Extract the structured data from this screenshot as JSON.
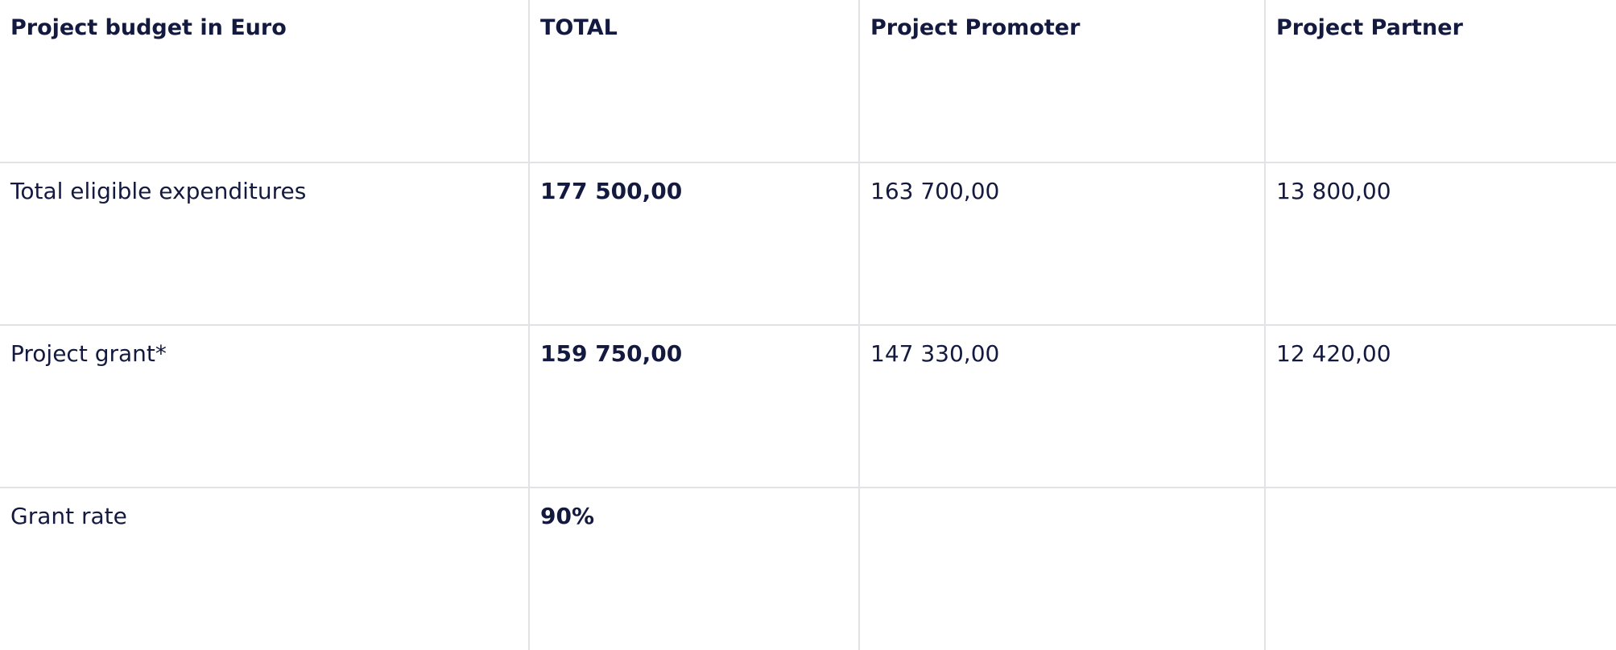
{
  "table": {
    "headers": [
      "Project budget in Euro",
      "TOTAL",
      "Project Promoter",
      "Project Partner"
    ],
    "rows": [
      {
        "label": "Total eligible expenditures",
        "total": "177 500,00",
        "promoter": "163 700,00",
        "partner": "13 800,00"
      },
      {
        "label": "Project grant*",
        "total": "159 750,00",
        "promoter": "147 330,00",
        "partner": "12 420,00"
      },
      {
        "label": "Grant rate",
        "total": "90%",
        "promoter": "",
        "partner": ""
      }
    ]
  },
  "colors": {
    "text": "#141a3f",
    "grid": "#e2e2e6",
    "background": "#ffffff"
  }
}
